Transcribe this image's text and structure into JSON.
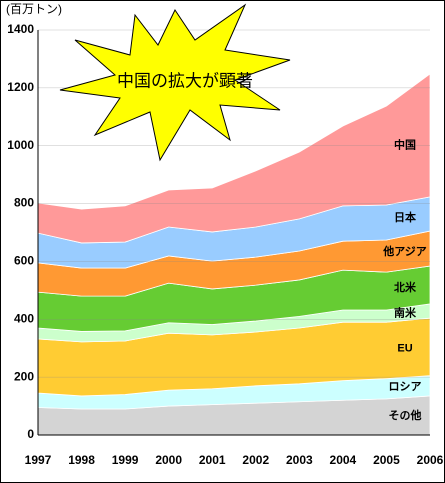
{
  "chart_data": {
    "type": "stacked_area",
    "title": "中国の拡大が顕著",
    "y_axis_label": "(百万トン)",
    "categories": [
      "1997",
      "1998",
      "1999",
      "2000",
      "2001",
      "2002",
      "2003",
      "2004",
      "2005",
      "2006"
    ],
    "series": [
      {
        "name": "その他",
        "color": "#d4d4d4",
        "values": [
          95,
          90,
          90,
          100,
          105,
          110,
          115,
          120,
          125,
          135
        ]
      },
      {
        "name": "ロシア",
        "color": "#ccffff",
        "values": [
          50,
          45,
          50,
          55,
          55,
          60,
          62,
          68,
          70,
          70
        ]
      },
      {
        "name": "EU",
        "color": "#ffcc33",
        "values": [
          187,
          187,
          185,
          197,
          186,
          186,
          193,
          202,
          195,
          199
        ]
      },
      {
        "name": "南米",
        "color": "#ccffcc",
        "values": [
          38,
          36,
          35,
          36,
          36,
          38,
          40,
          42,
          42,
          49
        ]
      },
      {
        "name": "北米",
        "color": "#66cc33",
        "values": [
          124,
          122,
          120,
          137,
          123,
          124,
          126,
          138,
          131,
          131
        ]
      },
      {
        "name": "他アジア",
        "color": "#ff9933",
        "values": [
          101,
          97,
          97,
          94,
          96,
          97,
          100,
          100,
          111,
          121
        ]
      },
      {
        "name": "日本",
        "color": "#99ccff",
        "values": [
          103,
          87,
          90,
          100,
          101,
          104,
          111,
          122,
          121,
          118
        ]
      },
      {
        "name": "中国",
        "color": "#ff9999",
        "values": [
          104,
          117,
          125,
          128,
          152,
          194,
          231,
          276,
          342,
          425
        ]
      }
    ],
    "ylim": [
      0,
      1400
    ],
    "yticks": [
      0,
      200,
      400,
      600,
      800,
      1000,
      1200,
      1400
    ],
    "grid": true
  }
}
